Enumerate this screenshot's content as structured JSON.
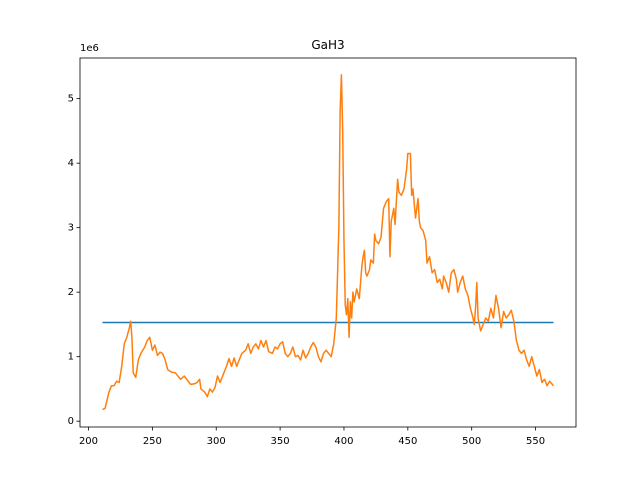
{
  "chart_data": {
    "type": "line",
    "title": "GaH3",
    "y_offset_label": "1e6",
    "xlim": [
      193.35,
      581.65
    ],
    "ylim": [
      -0.09,
      5.63
    ],
    "xticks": [
      200,
      250,
      300,
      350,
      400,
      450,
      500,
      550
    ],
    "yticks": [
      0,
      1,
      2,
      3,
      4,
      5
    ],
    "series": [
      {
        "color": "#1f77b4",
        "x": [
          211,
          564
        ],
        "values": [
          1.53,
          1.53
        ]
      },
      {
        "color": "#ff7f0e",
        "x": [
          211,
          213,
          216,
          218,
          220,
          222,
          224,
          226,
          228,
          230,
          232,
          233,
          234,
          235,
          237,
          239,
          241,
          244,
          246,
          248,
          250,
          252,
          254,
          256,
          258,
          260,
          262,
          265,
          268,
          270,
          272,
          275,
          278,
          280,
          283,
          285,
          287,
          288,
          291,
          293,
          295,
          297,
          299,
          301,
          303,
          306,
          308,
          310,
          312,
          314,
          316,
          318,
          320,
          323,
          325,
          327,
          329,
          331,
          333,
          335,
          337,
          339,
          341,
          344,
          346,
          348,
          350,
          352,
          354,
          356,
          358,
          360,
          362,
          364,
          366,
          368,
          370,
          372,
          374,
          376,
          378,
          380,
          382,
          384,
          386,
          388,
          390,
          392,
          394,
          396,
          397,
          398,
          399,
          400,
          401,
          402,
          403,
          404,
          405,
          406,
          407,
          408,
          410,
          412,
          414,
          415,
          416,
          417,
          418,
          420,
          421,
          423,
          424,
          425,
          427,
          429,
          431,
          433,
          435,
          436,
          437,
          439,
          440,
          442,
          443,
          445,
          447,
          449,
          450,
          452,
          453,
          454,
          456,
          457,
          458,
          459,
          460,
          462,
          464,
          465,
          467,
          469,
          471,
          473,
          475,
          477,
          478,
          480,
          482,
          484,
          486,
          488,
          489,
          491,
          493,
          495,
          497,
          499,
          501,
          502,
          503,
          504,
          505,
          507,
          509,
          511,
          513,
          515,
          517,
          519,
          521,
          523,
          525,
          527,
          529,
          531,
          533,
          535,
          537,
          539,
          541,
          543,
          545,
          547,
          549,
          551,
          553,
          555,
          557,
          559,
          561,
          564
        ],
        "values": [
          0.18,
          0.2,
          0.45,
          0.55,
          0.55,
          0.62,
          0.6,
          0.85,
          1.2,
          1.3,
          1.45,
          1.55,
          1.3,
          0.75,
          0.68,
          0.95,
          1.05,
          1.15,
          1.25,
          1.3,
          1.1,
          1.18,
          1.02,
          1.07,
          1.05,
          0.95,
          0.8,
          0.76,
          0.75,
          0.7,
          0.65,
          0.7,
          0.62,
          0.57,
          0.58,
          0.6,
          0.65,
          0.5,
          0.45,
          0.38,
          0.5,
          0.45,
          0.52,
          0.7,
          0.6,
          0.75,
          0.85,
          0.97,
          0.85,
          0.98,
          0.85,
          0.95,
          1.05,
          1.1,
          1.2,
          1.05,
          1.15,
          1.2,
          1.12,
          1.25,
          1.15,
          1.25,
          1.08,
          1.05,
          1.15,
          1.12,
          1.2,
          1.23,
          1.05,
          1.0,
          1.05,
          1.15,
          1.0,
          1.02,
          0.95,
          1.1,
          0.98,
          1.05,
          1.15,
          1.22,
          1.15,
          1.0,
          0.92,
          1.05,
          1.1,
          1.05,
          1.0,
          1.2,
          1.6,
          3.0,
          4.8,
          5.37,
          4.5,
          2.8,
          1.8,
          1.65,
          1.9,
          1.3,
          1.85,
          1.6,
          2.0,
          1.85,
          2.05,
          1.9,
          2.4,
          2.55,
          2.65,
          2.3,
          2.25,
          2.35,
          2.5,
          2.45,
          2.9,
          2.8,
          2.75,
          2.85,
          3.3,
          3.4,
          3.45,
          2.55,
          3.1,
          3.3,
          3.05,
          3.75,
          3.55,
          3.5,
          3.6,
          3.9,
          4.15,
          4.15,
          3.5,
          3.6,
          3.15,
          3.3,
          3.45,
          3.1,
          3.0,
          2.95,
          2.8,
          2.45,
          2.55,
          2.3,
          2.35,
          2.15,
          2.2,
          2.05,
          2.25,
          2.15,
          2.0,
          2.3,
          2.35,
          2.2,
          2.0,
          2.15,
          2.25,
          2.05,
          1.95,
          1.75,
          1.6,
          1.5,
          1.75,
          2.15,
          1.6,
          1.4,
          1.5,
          1.6,
          1.55,
          1.75,
          1.6,
          1.95,
          1.75,
          1.45,
          1.7,
          1.6,
          1.65,
          1.72,
          1.55,
          1.25,
          1.1,
          1.05,
          1.1,
          0.95,
          0.85,
          1.0,
          0.85,
          0.7,
          0.8,
          0.6,
          0.65,
          0.55,
          0.62,
          0.55
        ]
      }
    ]
  }
}
